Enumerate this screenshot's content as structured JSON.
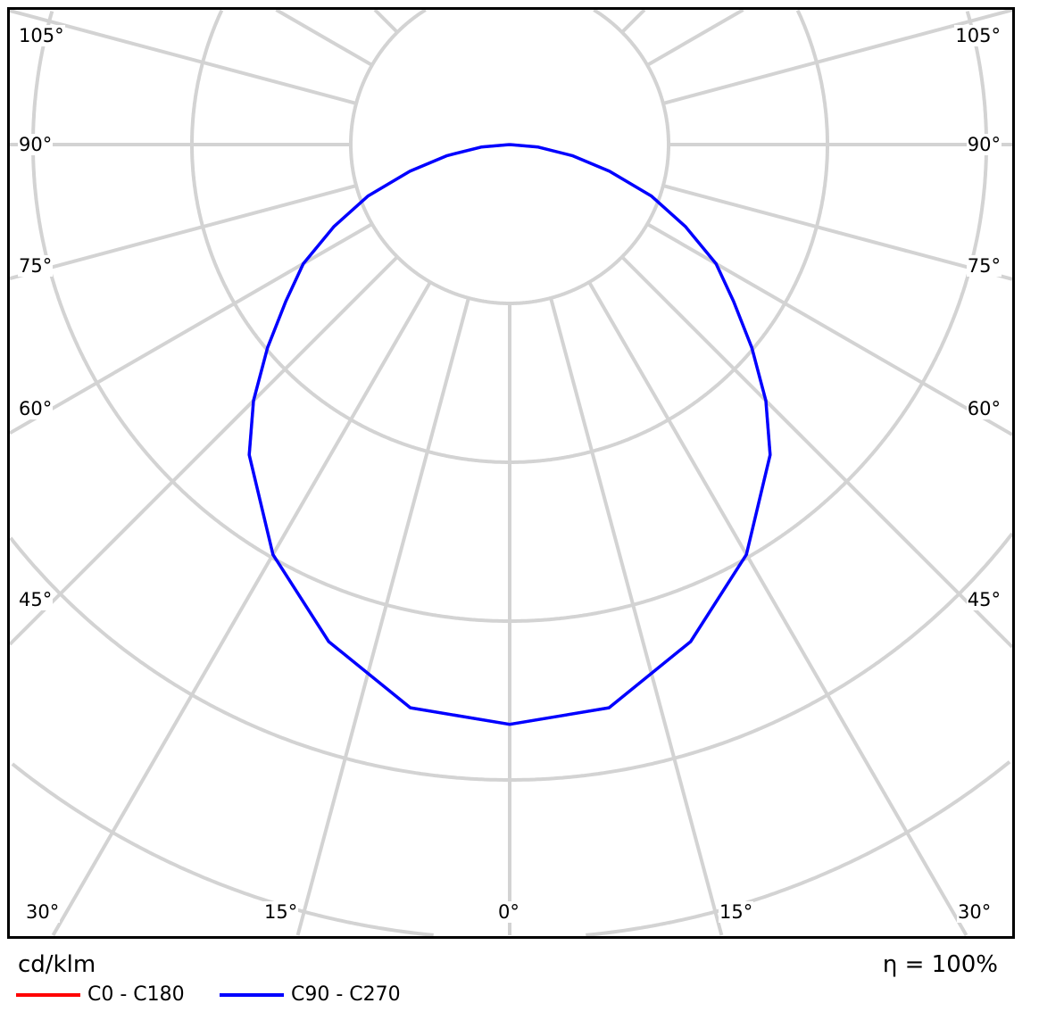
{
  "chart_data": {
    "type": "polar",
    "unit_label": "cd/klm",
    "efficiency_label": "η = 100%",
    "angle_labels_left": [
      "105°",
      "90°",
      "75°",
      "60°",
      "45°",
      "30°",
      "15°"
    ],
    "angle_labels_right": [
      "105°",
      "90°",
      "75°",
      "60°",
      "45°",
      "30°",
      "15°"
    ],
    "angle_label_center": "0°",
    "gamma_deg": [
      0,
      10,
      20,
      30,
      40,
      45,
      50,
      55,
      60,
      65,
      70,
      75,
      80,
      85,
      90
    ],
    "series": [
      {
        "name": "C0 - C180",
        "color": "#ff0000",
        "values": [
          365,
          360,
          333,
          298,
          255,
          228,
          199,
          172,
          150,
          122,
          95,
          65,
          40,
          18,
          0
        ]
      },
      {
        "name": "C90 - C270",
        "color": "#0000ff",
        "values": [
          365,
          360,
          333,
          298,
          255,
          228,
          199,
          172,
          150,
          122,
          95,
          65,
          40,
          18,
          0
        ]
      }
    ],
    "grid": true,
    "ring_step": 100,
    "legend_position": "bottom-left"
  }
}
